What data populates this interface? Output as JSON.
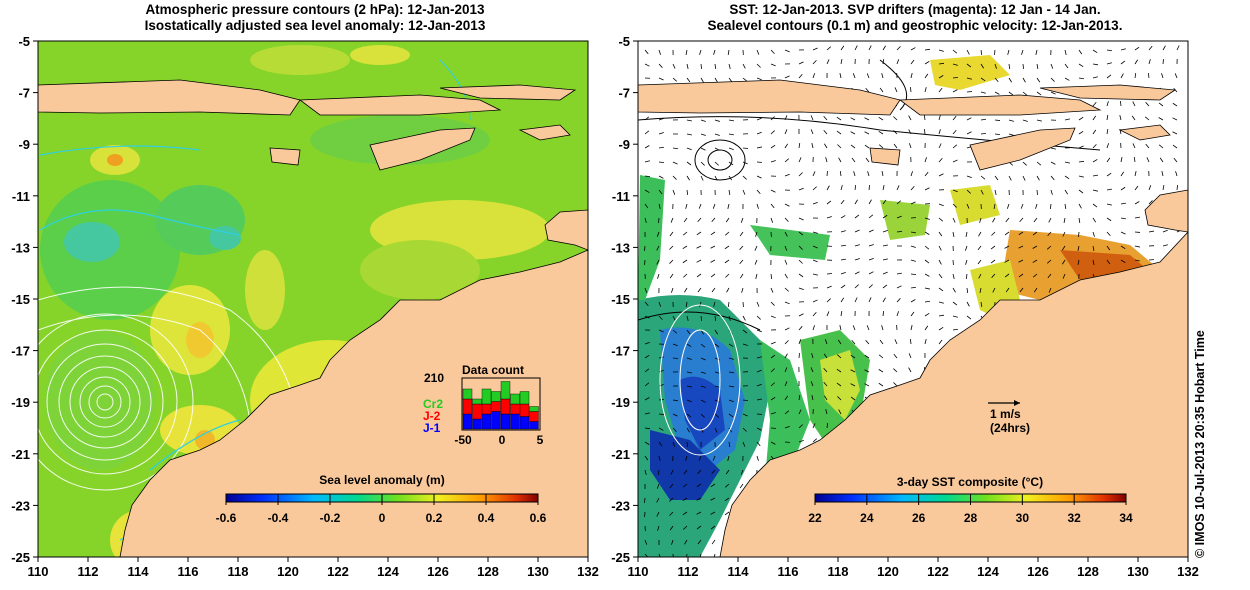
{
  "left_panel": {
    "title_line1": "Atmospheric pressure contours (2 hPa): 12-Jan-2013",
    "title_line2": "Isostatically adjusted sea level anomaly: 12-Jan-2013",
    "colorbar_title": "Sea level anomaly (m)",
    "colorbar_ticks": [
      "-0.6",
      "-0.4",
      "-0.2",
      "0",
      "0.2",
      "0.4",
      "0.6"
    ],
    "inset": {
      "title": "Data count",
      "max_label": "210",
      "legend": [
        {
          "label": "Cr2",
          "color": "#22cc22"
        },
        {
          "label": "J-2",
          "color": "#ff0000"
        },
        {
          "label": "J-1",
          "color": "#0000ff"
        }
      ],
      "x_ticks": [
        "-50",
        "0",
        "5"
      ],
      "bars": [
        {
          "j1": 0.3,
          "j2": 0.3,
          "cr2": 0.2
        },
        {
          "j1": 0.2,
          "j2": 0.3,
          "cr2": 0.1
        },
        {
          "j1": 0.3,
          "j2": 0.2,
          "cr2": 0.3
        },
        {
          "j1": 0.35,
          "j2": 0.2,
          "cr2": 0.2
        },
        {
          "j1": 0.3,
          "j2": 0.3,
          "cr2": 0.35
        },
        {
          "j1": 0.3,
          "j2": 0.2,
          "cr2": 0.2
        },
        {
          "j1": 0.25,
          "j2": 0.25,
          "cr2": 0.25
        },
        {
          "j1": 0.15,
          "j2": 0.2,
          "cr2": 0.1
        }
      ]
    }
  },
  "right_panel": {
    "title_line1": "SST: 12-Jan-2013. SVP drifters (magenta): 12 Jan - 14 Jan.",
    "title_line2": "Sealevel contours (0.1 m) and geostrophic velocity: 12-Jan-2013.",
    "colorbar_title": "3-day SST composite (°C)",
    "colorbar_ticks": [
      "22",
      "24",
      "26",
      "28",
      "30",
      "32",
      "34"
    ],
    "scale_label": "1 m/s",
    "scale_sublabel": "(24hrs)"
  },
  "axes": {
    "x_ticks": [
      "110",
      "112",
      "114",
      "116",
      "118",
      "120",
      "122",
      "124",
      "126",
      "128",
      "130",
      "132"
    ],
    "y_ticks": [
      "-5",
      "-7",
      "-9",
      "-11",
      "-13",
      "-15",
      "-17",
      "-19",
      "-21",
      "-23",
      "-25"
    ]
  },
  "credit": "© IMOS 10-Jul-2013 20:35 Hobart Time",
  "colors": {
    "land": "#f9c89b",
    "sea_green": "#7ed321",
    "sea_yellow": "#e3e832",
    "sst_white": "#ffffff"
  }
}
